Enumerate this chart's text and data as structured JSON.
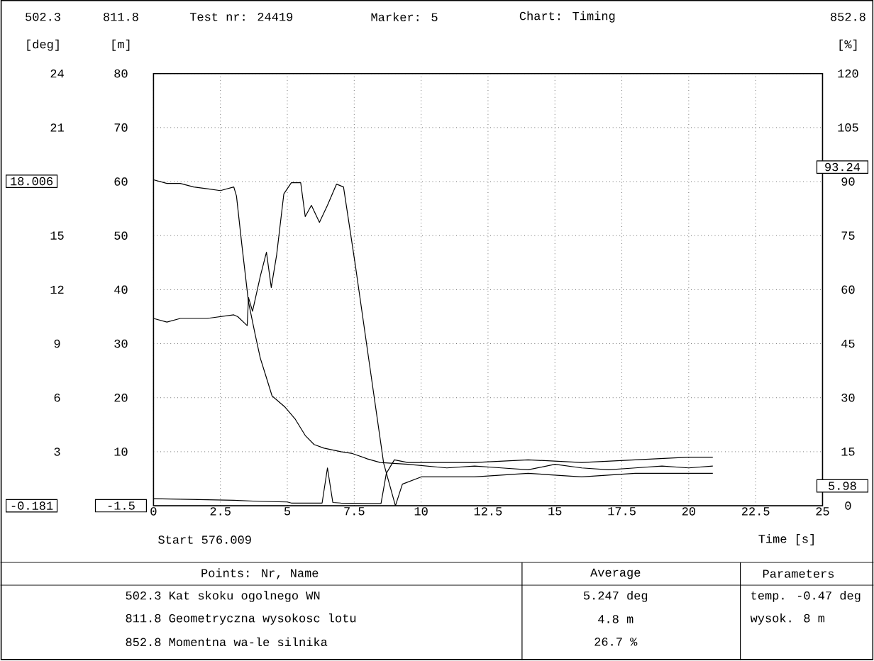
{
  "chart_data": {
    "type": "line",
    "xlabel": "Time [s]",
    "ylabel": "[deg]",
    "y3label": "[m]",
    "y2label": "[%]",
    "xlim": [
      0,
      25
    ],
    "xticks": [
      0,
      2.5,
      5,
      7.5,
      10,
      12.5,
      15,
      17.5,
      20,
      22.5,
      25
    ],
    "ylim": [
      0,
      24
    ],
    "yticks": [
      3,
      6,
      9,
      12,
      15,
      {
        "value": 18,
        "label": null
      },
      21,
      24
    ],
    "y3lim": [
      0,
      80
    ],
    "y3ticks": [
      10,
      20,
      30,
      40,
      50,
      60,
      70,
      80
    ],
    "y2lim": [
      0,
      120
    ],
    "y2ticks": [
      0,
      15,
      30,
      45,
      60,
      75,
      90,
      105,
      120
    ],
    "grid": true,
    "series": [
      {
        "color": "#000000",
        "x": [
          0,
          0.5,
          1,
          1.5,
          2,
          2.5,
          3,
          3.1,
          3.3,
          3.55,
          3.8,
          3.99,
          4.2,
          4.43,
          4.9,
          5.3,
          5.67,
          6.0,
          6.37,
          7.0,
          7.43,
          8.0,
          8.47,
          9.5,
          10.96,
          12,
          13,
          14,
          15,
          16,
          17,
          18,
          19,
          20,
          20.9
        ],
        "values": [
          18.1,
          17.9,
          17.9,
          17.7,
          17.6,
          17.5,
          17.7,
          17.2,
          14.5,
          11.3,
          9.5,
          8.2,
          7.2,
          6.1,
          5.5,
          4.8,
          3.9,
          3.4,
          3.2,
          3.0,
          2.9,
          2.6,
          2.4,
          2.3,
          2.1,
          2.2,
          2.1,
          2.0,
          2.3,
          2.1,
          2.0,
          2.1,
          2.2,
          2.1,
          2.2
        ]
      },
      {
        "color": "#000000",
        "axis": "y3",
        "x": [
          0,
          1,
          2,
          3,
          4,
          5,
          5.15,
          6.3,
          6.5,
          6.7,
          7,
          8,
          8.5,
          8.7,
          9,
          9.5,
          10,
          12,
          14,
          16,
          18,
          20,
          20.9
        ],
        "values": [
          1.3,
          1.2,
          1.1,
          1.0,
          0.8,
          0.7,
          0.5,
          0.5,
          7,
          0.6,
          0.5,
          0.4,
          0.4,
          6,
          8.5,
          8,
          8,
          8,
          8.5,
          8,
          8.5,
          9,
          9
        ]
      },
      {
        "color": "#000000",
        "axis": "y2",
        "x": [
          0,
          0.5,
          1,
          2,
          3,
          3.15,
          3.5,
          3.55,
          3.7,
          3.99,
          4.22,
          4.4,
          4.6,
          4.87,
          5.15,
          5.5,
          5.67,
          5.9,
          6.2,
          6.5,
          6.84,
          7.1,
          7.54,
          8.07,
          8.6,
          9.04,
          9.3,
          10,
          12,
          14,
          16,
          18,
          20,
          20.9
        ],
        "values": [
          52,
          51,
          52,
          52,
          53,
          52.5,
          50,
          57.8,
          54,
          63.7,
          70.4,
          60.6,
          69.6,
          86.6,
          89.7,
          89.7,
          80.3,
          83.4,
          78.7,
          83.4,
          89.3,
          88.5,
          66.9,
          39.3,
          11.8,
          0,
          6,
          8,
          8,
          9,
          8,
          9,
          9,
          9
        ]
      }
    ],
    "annotations": [
      "502.3",
      "811.8",
      "Test nr: 24419",
      "Marker: 5",
      "Chart: Timing",
      "852.8",
      "18.006",
      "93.24",
      "5.98",
      "-0.181",
      "-1.5",
      "Start 576.009",
      "Points: Nr, Name",
      "Average",
      "Parameters",
      "502.3 Kat skoku ogolnego WN",
      "5.247 deg",
      "temp. -0.47 deg",
      "811.8 Geometryczna wysokosc lotu",
      "4.8 m",
      "wysok. 8 m",
      "852.8 Momentna wa-le silnika",
      "26.7 %"
    ]
  }
}
